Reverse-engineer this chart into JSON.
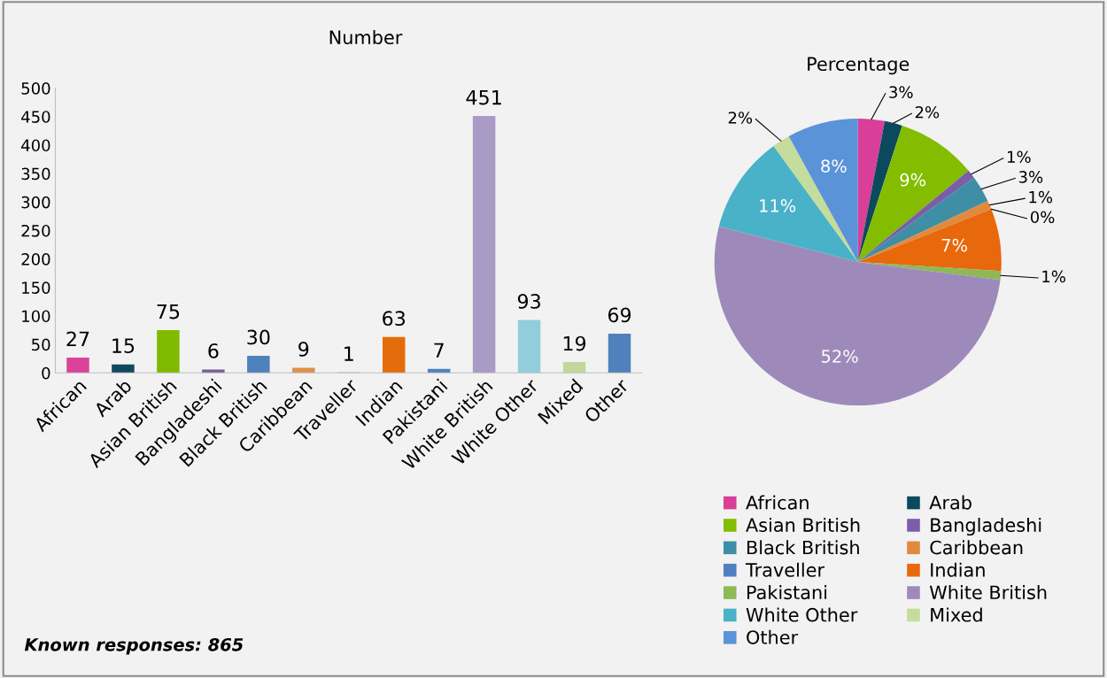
{
  "chart_data": [
    {
      "type": "bar",
      "title": "Number",
      "categories": [
        "African",
        "Arab",
        "Asian British",
        "Bangladeshi",
        "Black British",
        "Caribbean",
        "Traveller",
        "Indian",
        "Pakistani",
        "White British",
        "White Other",
        "Mixed",
        "Other"
      ],
      "values": [
        27,
        15,
        75,
        6,
        30,
        9,
        1,
        63,
        7,
        451,
        93,
        19,
        69
      ],
      "colors": [
        "#d9449a",
        "#0e4a5f",
        "#7fba00",
        "#7a5c9a",
        "#4f81bd",
        "#e0904a",
        "#4f81bd",
        "#e46c0a",
        "#4f81bd",
        "#a99bc6",
        "#92cddc",
        "#c3d69b",
        "#4f81bd"
      ],
      "ylim": [
        0,
        500
      ],
      "yticks": [
        0,
        50,
        100,
        150,
        200,
        250,
        300,
        350,
        400,
        450,
        500
      ],
      "grid": false,
      "data_labels": true,
      "annotations": [
        "Known responses: 865"
      ]
    },
    {
      "type": "pie",
      "title": "Percentage",
      "categories": [
        "African",
        "Arab",
        "Asian British",
        "Bangladeshi",
        "Black British",
        "Caribbean",
        "Traveller",
        "Indian",
        "Pakistani",
        "White British",
        "White Other",
        "Mixed",
        "Other"
      ],
      "values": [
        3,
        2,
        9,
        1,
        3,
        1,
        0,
        7,
        1,
        52,
        11,
        2,
        8
      ],
      "colors": [
        "#d93f99",
        "#0b4a5e",
        "#84bc00",
        "#7b5ea7",
        "#3e8ea5",
        "#e08a3e",
        "#4f7fc0",
        "#e8680c",
        "#8fb856",
        "#9e8aba",
        "#4ab2c8",
        "#c4dc9c",
        "#5b93d9"
      ],
      "value_labels": [
        "3%",
        "2%",
        "9%",
        "1%",
        "3%",
        "1%",
        "0%",
        "7%",
        "1%",
        "52%",
        "11%",
        "2%",
        "8%"
      ],
      "legend": "bottom"
    }
  ]
}
